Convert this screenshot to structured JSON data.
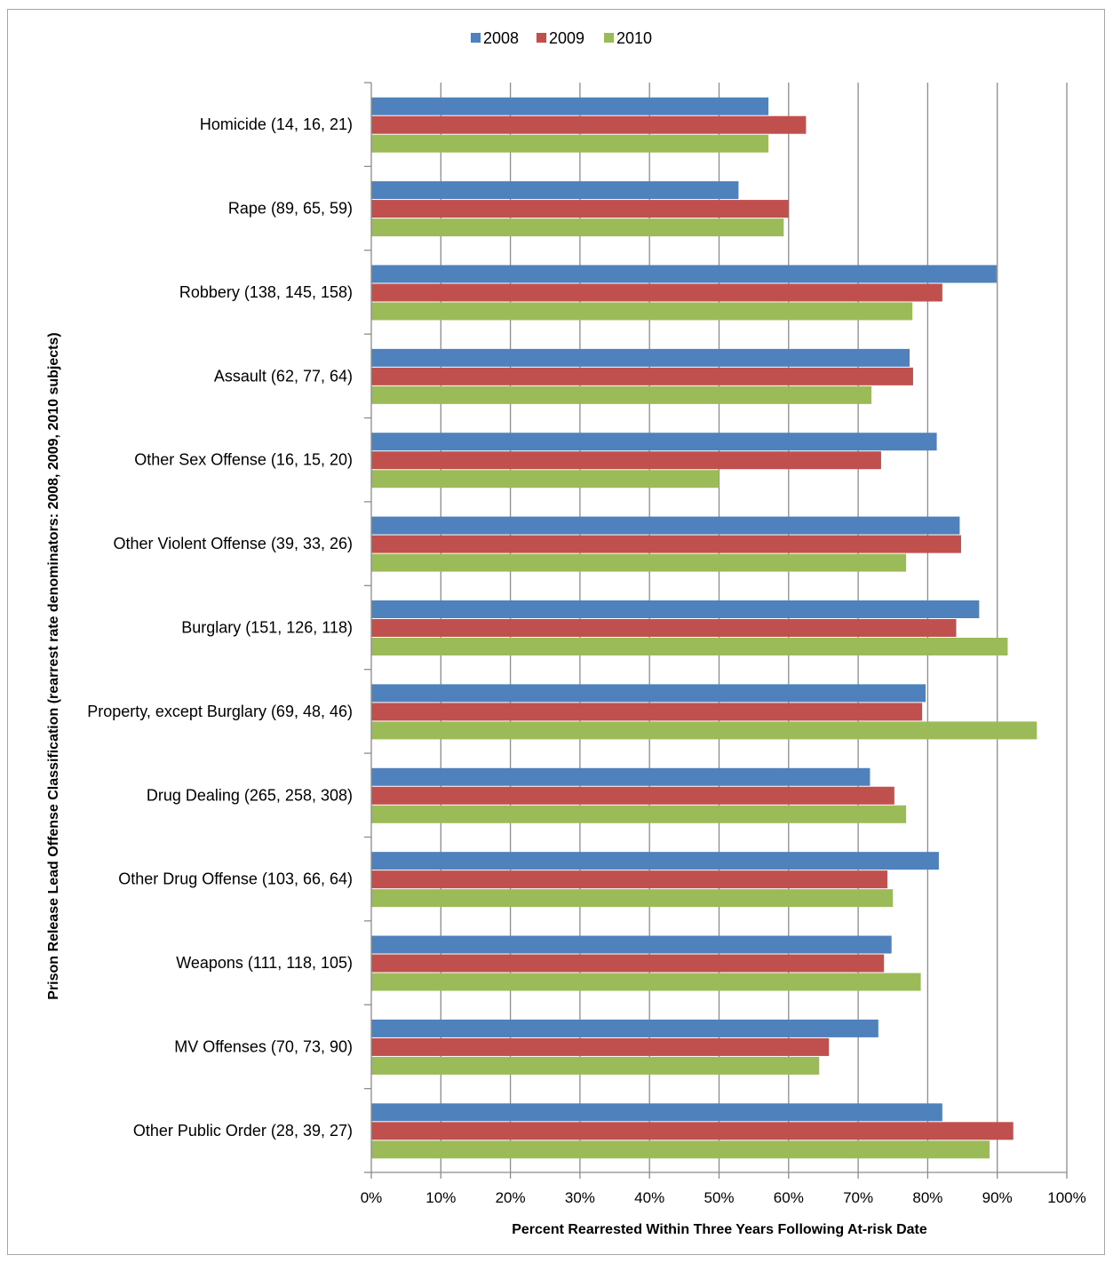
{
  "chart_data": {
    "type": "bar",
    "orientation": "horizontal",
    "title": "",
    "xlabel": "Percent Rearrested Within Three Years Following At-risk Date",
    "ylabel": "Prison Release Lead Offense Classification (rearrest rate denominators: 2008, 2009, 2010 subjects)",
    "xlim": [
      0,
      100
    ],
    "x_ticks": [
      "0%",
      "10%",
      "20%",
      "30%",
      "40%",
      "50%",
      "60%",
      "70%",
      "80%",
      "90%",
      "100%"
    ],
    "grid": "vertical-major",
    "legend_position": "top",
    "categories": [
      "Homicide (14, 16, 21)",
      "Rape (89, 65, 59)",
      "Robbery (138, 145, 158)",
      "Assault (62, 77, 64)",
      "Other Sex Offense (16, 15, 20)",
      "Other Violent Offense (39, 33, 26)",
      "Burglary (151, 126, 118)",
      "Property, except Burglary (69, 48, 46)",
      "Drug Dealing (265, 258, 308)",
      "Other Drug Offense (103, 66, 64)",
      "Weapons (111, 118, 105)",
      "MV Offenses (70, 73, 90)",
      "Other Public Order (28, 39, 27)"
    ],
    "series": [
      {
        "name": "2008",
        "color": "#4f81bd",
        "values": [
          57.1,
          52.8,
          89.9,
          77.4,
          81.3,
          84.6,
          87.4,
          79.7,
          71.7,
          81.6,
          74.8,
          72.9,
          82.1
        ]
      },
      {
        "name": "2009",
        "color": "#c0504d",
        "values": [
          62.5,
          60.0,
          82.1,
          77.9,
          73.3,
          84.8,
          84.1,
          79.2,
          75.2,
          74.2,
          73.7,
          65.8,
          92.3
        ]
      },
      {
        "name": "2010",
        "color": "#9bbb59",
        "values": [
          57.1,
          59.3,
          77.8,
          71.9,
          50.0,
          76.9,
          91.5,
          95.7,
          76.9,
          75.0,
          79.0,
          64.4,
          88.9
        ]
      }
    ]
  }
}
